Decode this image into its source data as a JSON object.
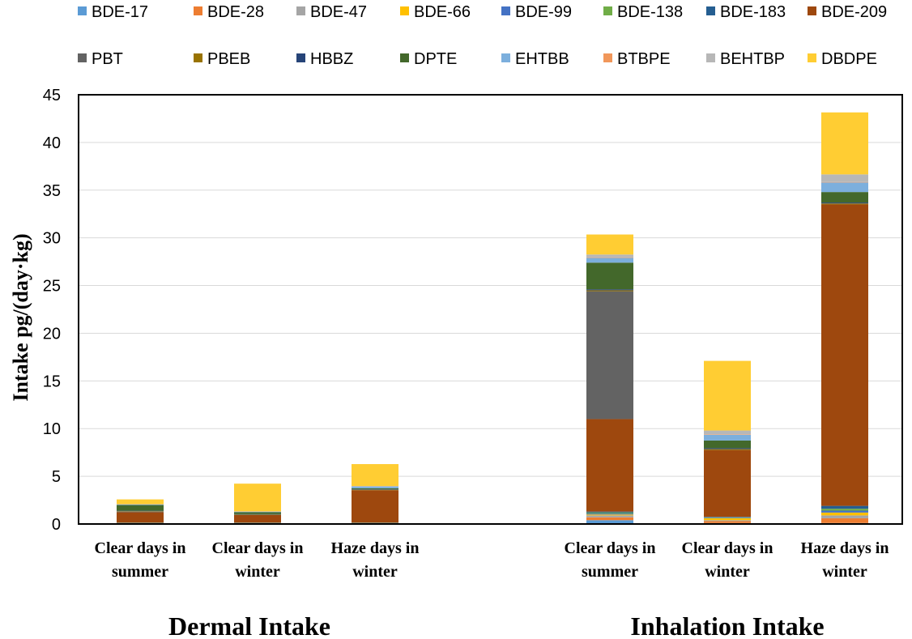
{
  "chart_data": {
    "type": "bar",
    "stacked": true,
    "ylabel": "Intake  pg/(day·kg)",
    "ylim": [
      0,
      45
    ],
    "yticks": [
      0,
      5,
      10,
      15,
      20,
      25,
      30,
      35,
      40,
      45
    ],
    "grid": true,
    "legend_position": "top",
    "categories": [
      [
        "Clear days in",
        "summer"
      ],
      [
        "Clear days in",
        "winter"
      ],
      [
        "Haze days in",
        "winter"
      ],
      [
        "Clear days in",
        "summer"
      ],
      [
        "Clear days in",
        "winter"
      ],
      [
        "Haze days in",
        "winter"
      ]
    ],
    "groups": [
      {
        "label": "Dermal Intake",
        "categories": [
          0,
          1,
          2
        ]
      },
      {
        "label": "Inhalation Intake",
        "categories": [
          3,
          4,
          5
        ]
      }
    ],
    "series": [
      {
        "name": "BDE-17",
        "color": "#5B9BD5",
        "values": [
          0.02,
          0.02,
          0.02,
          0.4,
          0.1,
          0.1
        ]
      },
      {
        "name": "BDE-28",
        "color": "#ED7D31",
        "values": [
          0.02,
          0.02,
          0.02,
          0.3,
          0.2,
          0.5
        ]
      },
      {
        "name": "BDE-47",
        "color": "#A5A5A5",
        "values": [
          0.02,
          0.02,
          0.02,
          0.2,
          0.1,
          0.3
        ]
      },
      {
        "name": "BDE-66",
        "color": "#FFC000",
        "values": [
          0.02,
          0.02,
          0.02,
          0.1,
          0.2,
          0.3
        ]
      },
      {
        "name": "BDE-99",
        "color": "#4472C4",
        "values": [
          0.02,
          0.02,
          0.02,
          0.1,
          0.05,
          0.2
        ]
      },
      {
        "name": "BDE-138",
        "color": "#70AD47",
        "values": [
          0.02,
          0.02,
          0.02,
          0.1,
          0.05,
          0.2
        ]
      },
      {
        "name": "BDE-183",
        "color": "#255E91",
        "values": [
          0.02,
          0.02,
          0.02,
          0.1,
          0.05,
          0.3
        ]
      },
      {
        "name": "BDE-209",
        "color": "#9E480E",
        "values": [
          1.1,
          0.8,
          3.4,
          9.7,
          7.0,
          31.6
        ]
      },
      {
        "name": "PBT",
        "color": "#636363",
        "values": [
          0.05,
          0.0,
          0.0,
          13.4,
          0.0,
          0.0
        ]
      },
      {
        "name": "PBEB",
        "color": "#997300",
        "values": [
          0.05,
          0.05,
          0.05,
          0.1,
          0.1,
          0.1
        ]
      },
      {
        "name": "HBBZ",
        "color": "#264478",
        "values": [
          0.05,
          0.05,
          0.05,
          0.1,
          0.1,
          0.1
        ]
      },
      {
        "name": "DPTE",
        "color": "#43682B",
        "values": [
          0.6,
          0.2,
          0.1,
          2.8,
          0.8,
          1.1
        ]
      },
      {
        "name": "EHTBB",
        "color": "#7CAFDD",
        "values": [
          0.05,
          0.05,
          0.2,
          0.5,
          0.6,
          1.0
        ]
      },
      {
        "name": "BTBPE",
        "color": "#F1975A",
        "values": [
          0.02,
          0.02,
          0.02,
          0.05,
          0.05,
          0.05
        ]
      },
      {
        "name": "BEHTBP",
        "color": "#B7B7B7",
        "values": [
          0.02,
          0.02,
          0.02,
          0.3,
          0.4,
          0.8
        ]
      },
      {
        "name": "DBDPE",
        "color": "#FFCD33",
        "values": [
          0.5,
          2.9,
          2.3,
          2.1,
          7.3,
          6.5
        ]
      }
    ]
  }
}
